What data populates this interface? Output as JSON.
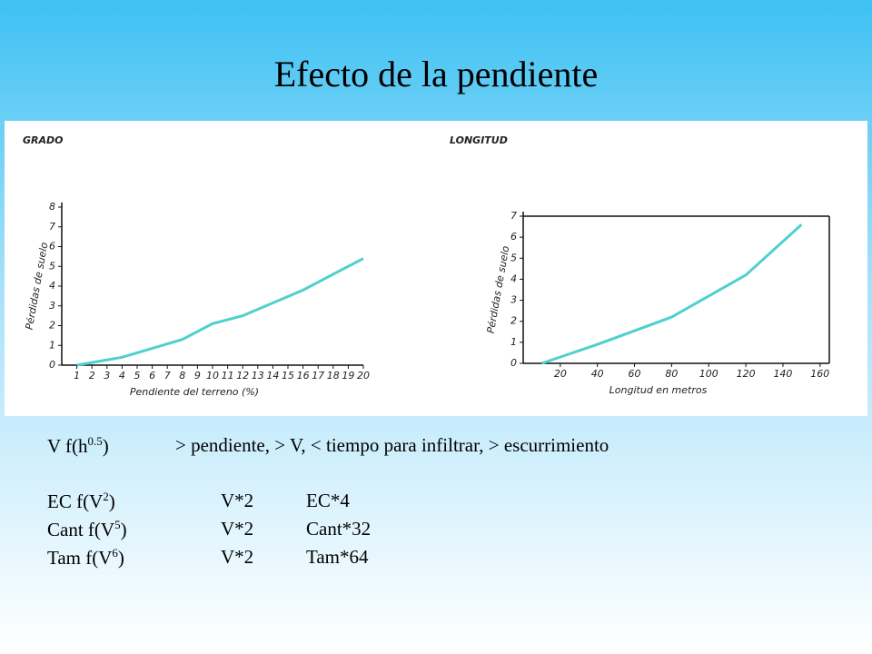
{
  "title": "Efecto de la pendiente",
  "chart_data": [
    {
      "type": "line",
      "title": "GRADO",
      "x_label": "Pendiente del terreno (%)",
      "y_label": "Pérdidas de suelo",
      "x": [
        1,
        4,
        8,
        10,
        12,
        16,
        20
      ],
      "series": [
        {
          "color": "#4fd0cf",
          "values": [
            0,
            0.4,
            1.3,
            2.1,
            2.5,
            3.8,
            5.4
          ]
        }
      ],
      "xlim": [
        0,
        20
      ],
      "xticks": [
        1,
        2,
        3,
        4,
        5,
        6,
        7,
        8,
        9,
        10,
        11,
        12,
        13,
        14,
        15,
        16,
        17,
        18,
        19,
        20
      ],
      "ylim": [
        0,
        8
      ],
      "yticks": [
        0,
        1,
        2,
        3,
        4,
        5,
        6,
        7,
        8
      ],
      "frame": false
    },
    {
      "type": "line",
      "title": "LONGITUD",
      "x_label": "Longitud en metros",
      "y_label": "Pérdidas de suelo",
      "x": [
        10,
        40,
        80,
        120,
        150
      ],
      "series": [
        {
          "color": "#4fd0cf",
          "values": [
            0,
            0.9,
            2.2,
            4.2,
            6.6
          ]
        }
      ],
      "xlim": [
        0,
        165
      ],
      "xticks": [
        20,
        40,
        60,
        80,
        100,
        120,
        140,
        160
      ],
      "ylim": [
        0,
        7
      ],
      "yticks": [
        0,
        1,
        2,
        3,
        4,
        5,
        6,
        7
      ],
      "frame": true
    }
  ],
  "formulas": [
    {
      "base": "V f(h",
      "exponent": "0.5",
      "close": ")",
      "cells": [
        "> pendiente, > V, < tiempo para infiltrar, > escurrimiento"
      ]
    },
    {
      "base": "EC f(V",
      "exponent": "2",
      "close": ")",
      "cells": [
        "V*2",
        "EC*4"
      ]
    },
    {
      "base": "Cant f(V",
      "exponent": "5",
      "close": ")",
      "cells": [
        "V*2",
        "Cant*32"
      ]
    },
    {
      "base": "Tam f(V",
      "exponent": "6",
      "close": ")",
      "cells": [
        "V*2",
        "Tam*64"
      ]
    }
  ]
}
